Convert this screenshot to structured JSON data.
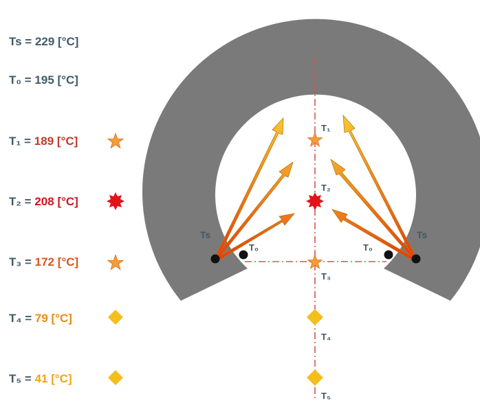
{
  "legend": {
    "ts": "Ts = 229 [°C]",
    "t0": "T₀ = 195 [°C]",
    "rows": [
      {
        "name": "T₁",
        "value": "189",
        "unit": "[°C]",
        "color": "#c0392b",
        "icon": "star-icon",
        "icon_color": "#f39c3a"
      },
      {
        "name": "T₂",
        "value": "208",
        "unit": "[°C]",
        "color": "#d0141a",
        "icon": "burst-icon",
        "icon_color": "#e3131a"
      },
      {
        "name": "T₃",
        "value": "172",
        "unit": "[°C]",
        "color": "#d9541e",
        "icon": "star-icon",
        "icon_color": "#f39c3a"
      },
      {
        "name": "T₄",
        "value": "79",
        "unit": "[°C]",
        "color": "#e98a12",
        "icon": "diamond-icon",
        "icon_color": "#f4be1c"
      },
      {
        "name": "T₅",
        "value": "41",
        "unit": "[°C]",
        "color": "#eea51a",
        "icon": "diamond-icon",
        "icon_color": "#f4be1c"
      }
    ]
  },
  "points": {
    "t1": "T₁",
    "t2": "T₂",
    "t3": "T₃",
    "t4": "T₄",
    "t5": "T₅"
  },
  "sensors": {
    "ts_left": "Ts",
    "ts_right": "Ts",
    "t0_left": "T₀",
    "t0_right": "T₀"
  },
  "colors": {
    "ring": "#7a7a7a",
    "axis": "#d9534f",
    "label_dark": "#3f5a66",
    "arrow_light": "#f6c531",
    "arrow_dark": "#e8380d"
  }
}
